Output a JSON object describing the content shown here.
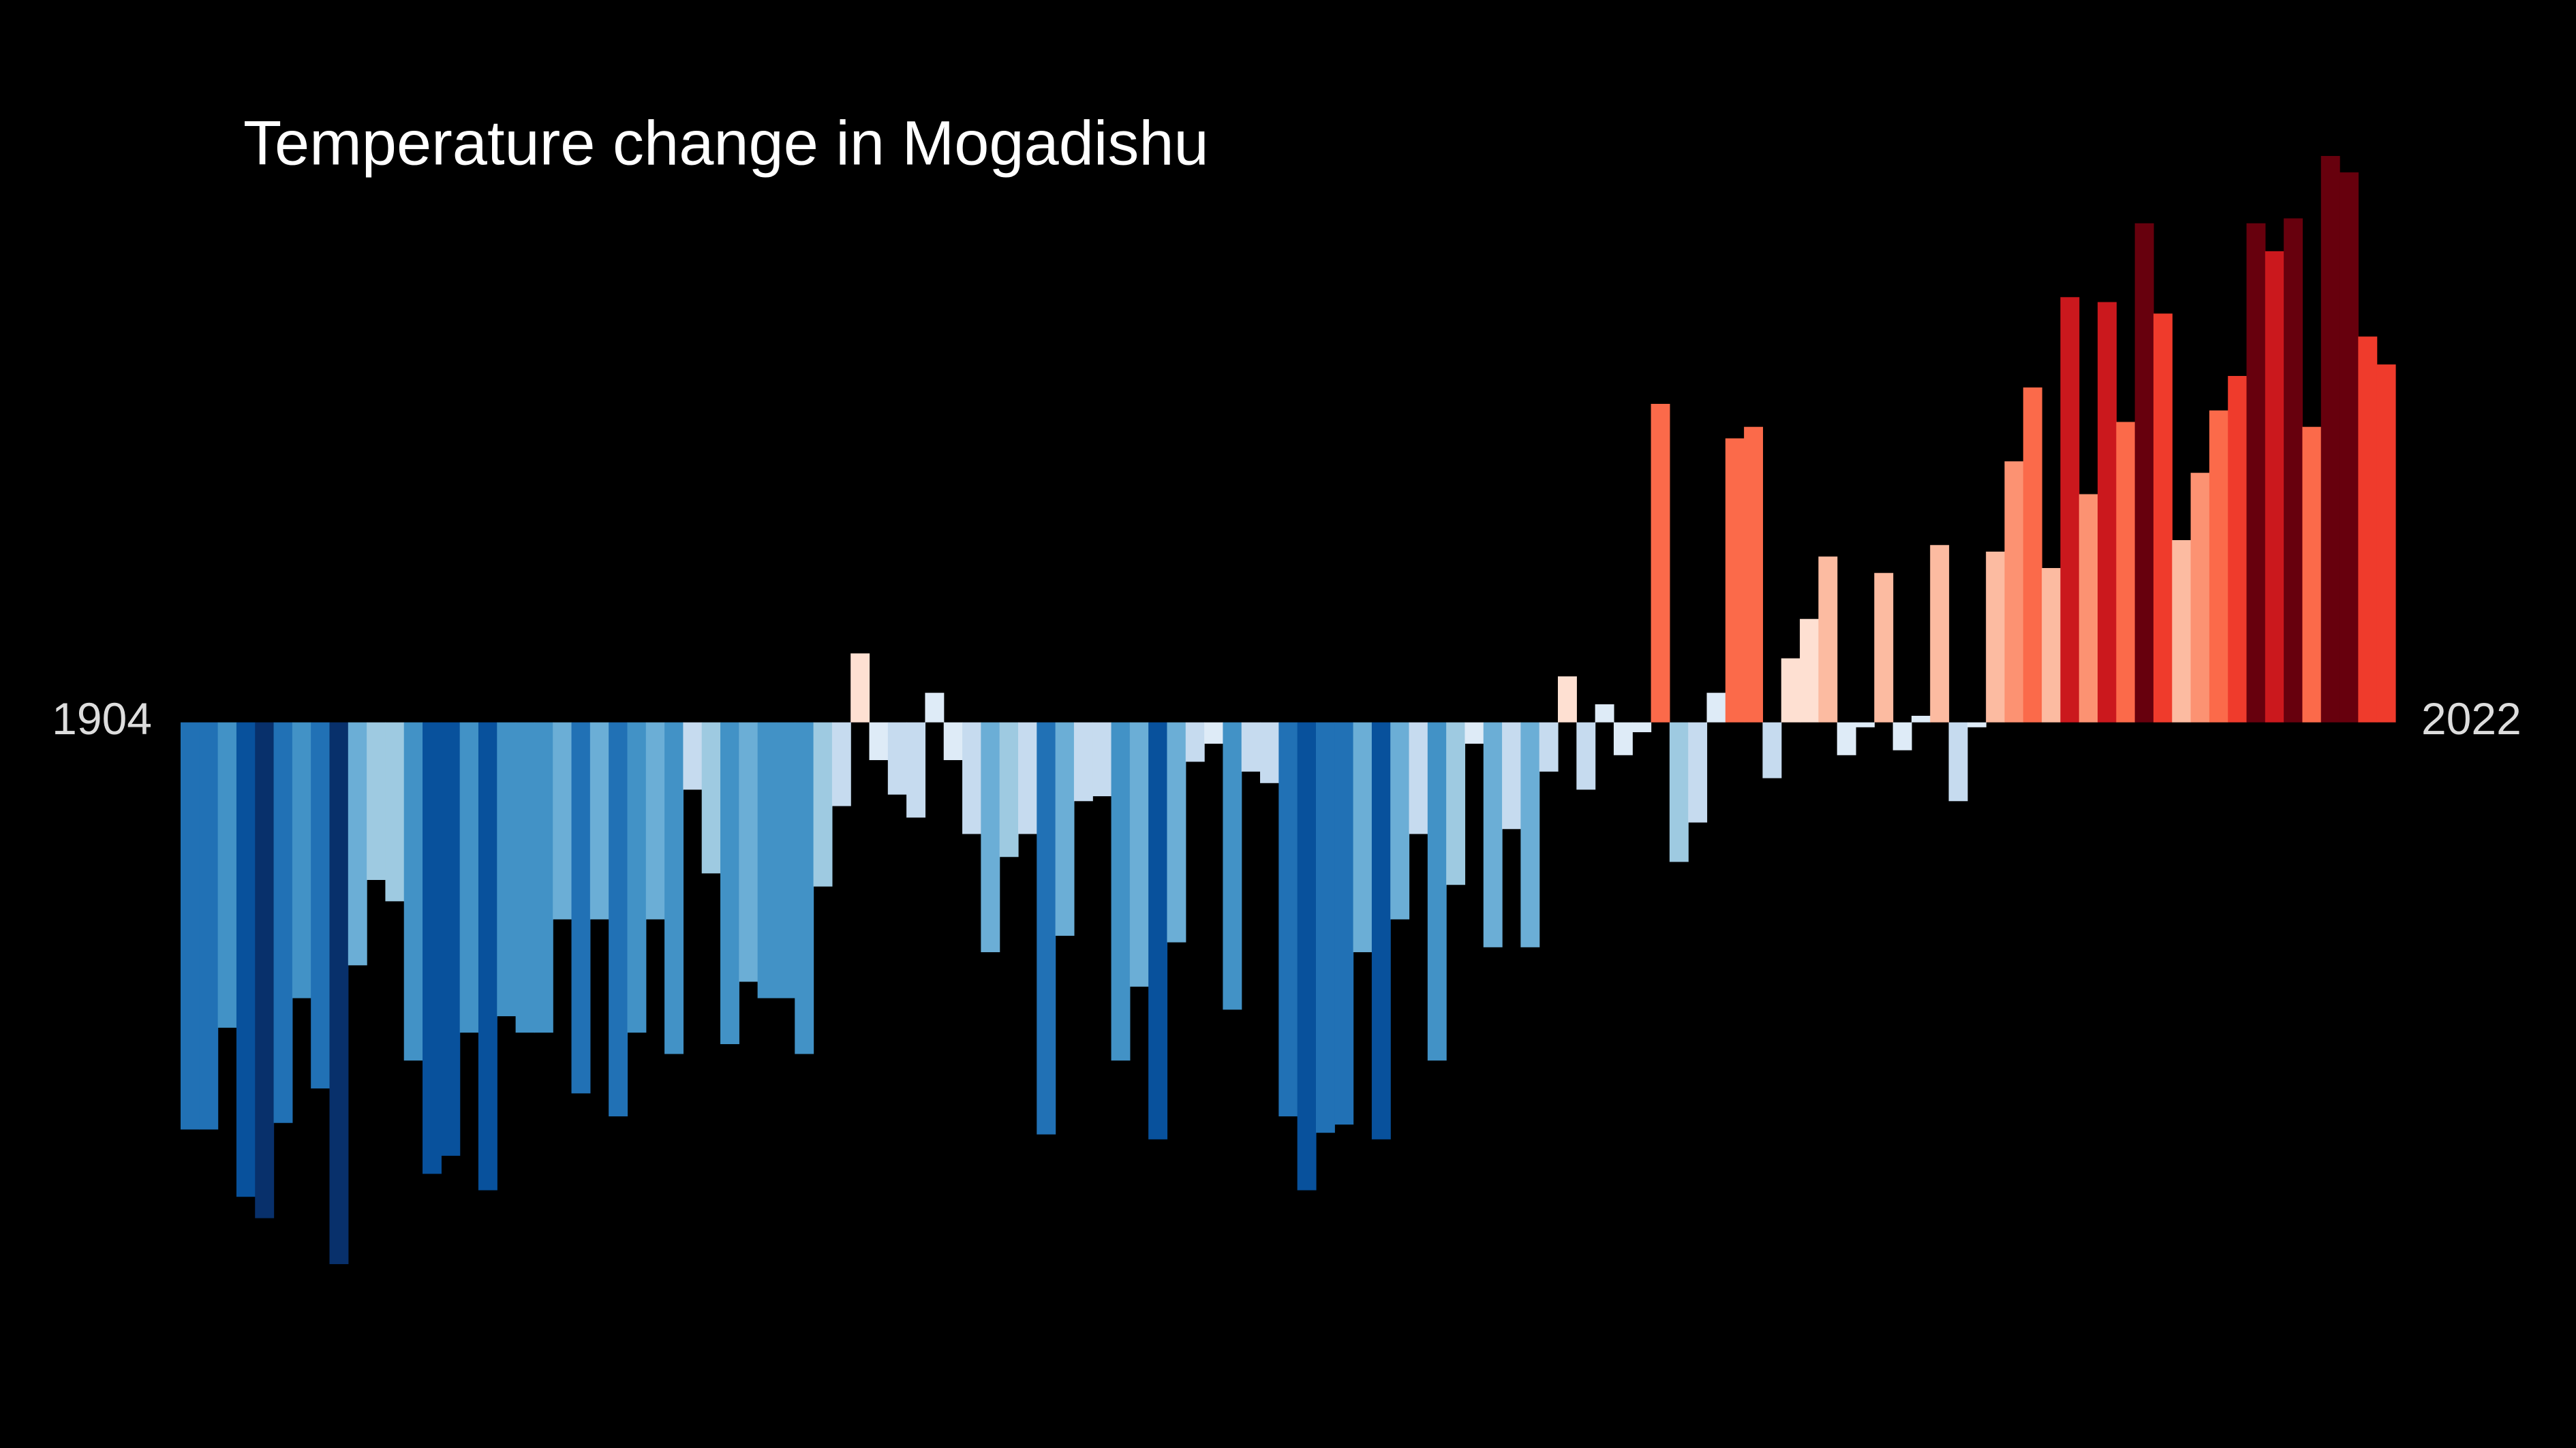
{
  "chart_data": {
    "type": "bar",
    "title": "Temperature change in Mogadishu",
    "categories": [
      "1904",
      null,
      null,
      null,
      null,
      null,
      null,
      null,
      null,
      null,
      null,
      null,
      null,
      null,
      null,
      null,
      null,
      null,
      null,
      null,
      null,
      null,
      null,
      null,
      null,
      null,
      null,
      null,
      null,
      null,
      null,
      null,
      null,
      null,
      null,
      null,
      null,
      null,
      null,
      null,
      null,
      null,
      null,
      null,
      null,
      null,
      null,
      null,
      null,
      null,
      null,
      null,
      null,
      null,
      null,
      null,
      null,
      null,
      null,
      null,
      null,
      null,
      null,
      null,
      null,
      null,
      null,
      null,
      null,
      null,
      null,
      null,
      null,
      null,
      null,
      null,
      null,
      null,
      null,
      null,
      null,
      null,
      null,
      null,
      null,
      null,
      null,
      null,
      null,
      null,
      null,
      null,
      null,
      null,
      null,
      null,
      null,
      null,
      null,
      null,
      null,
      null,
      null,
      null,
      null,
      null,
      null,
      null,
      null,
      null,
      null,
      null,
      null,
      null,
      null,
      null,
      null,
      null,
      "2022"
    ],
    "values": [
      -2.48,
      -2.48,
      -1.86,
      -2.89,
      -3.02,
      -2.44,
      -1.68,
      -2.23,
      -3.3,
      -1.48,
      -0.96,
      -1.09,
      -2.06,
      -2.75,
      -2.64,
      -1.89,
      -2.85,
      -1.79,
      -1.89,
      -1.89,
      -1.2,
      -2.26,
      -1.2,
      -2.4,
      -1.89,
      -1.2,
      -2.02,
      -0.41,
      -0.92,
      -1.96,
      -1.58,
      -1.68,
      -1.68,
      -2.02,
      -1.0,
      -0.51,
      0.42,
      -0.23,
      -0.44,
      -0.58,
      0.18,
      -0.23,
      -0.68,
      -1.4,
      -0.82,
      -0.68,
      -2.51,
      -1.3,
      -0.48,
      -0.45,
      -2.06,
      -1.61,
      -2.54,
      -1.34,
      -0.24,
      -0.13,
      -1.75,
      -0.3,
      -0.37,
      -2.4,
      -2.85,
      -2.5,
      -2.45,
      -1.4,
      -2.54,
      -1.2,
      -0.68,
      -2.06,
      -0.99,
      -0.13,
      -1.37,
      -0.65,
      -1.37,
      -0.3,
      0.28,
      -0.41,
      0.11,
      -0.2,
      -0.06,
      1.94,
      -0.85,
      -0.61,
      0.18,
      1.73,
      1.8,
      -0.34,
      0.39,
      0.63,
      1.01,
      -0.2,
      -0.03,
      0.91,
      -0.17,
      0.04,
      1.08,
      -0.48,
      -0.03,
      1.04,
      1.59,
      2.04,
      0.94,
      2.59,
      1.39,
      2.56,
      1.83,
      3.04,
      2.49,
      1.11,
      1.52,
      1.9,
      2.11,
      3.04,
      2.87,
      3.07,
      1.8,
      3.45,
      3.35,
      2.35,
      2.18
    ],
    "ylim": [
      -4.42,
      4.4
    ],
    "colormap": [
      "#08306b",
      "#08519c",
      "#2171b5",
      "#4292c6",
      "#6baed6",
      "#9ecae1",
      "#c6dbef",
      "#deebf7",
      "#fee0d2",
      "#fcbba1",
      "#fc9272",
      "#fb6a4a",
      "#ef3b2c",
      "#cb181d",
      "#67000d"
    ],
    "background": "#000000"
  }
}
